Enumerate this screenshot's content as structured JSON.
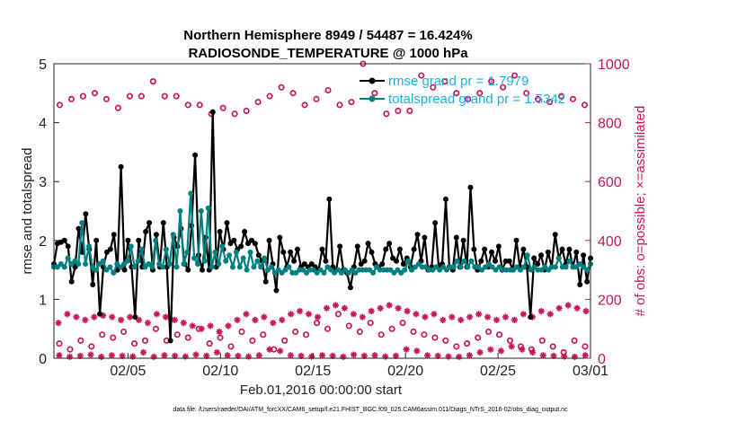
{
  "chart_data": {
    "type": "line",
    "title": "Northern Hemisphere 8949 / 54487 = 16.424%",
    "subtitle": "RADIOSONDE_TEMPERATURE @ 1000 hPa",
    "xlabel": "Feb.01,2016 00:00:00 start",
    "ylabel": "rmse and totalspread",
    "y2label": "# of obs: o=possible; ×=assimilated",
    "footnote": "data file: /Users/raeder/DAI/ATM_forcXX/CAM6_setup/f.e21.FHIST_BGC.f09_025.CAM6assim.011/Diags_NTrS_2016-02/obs_diag_output.nc",
    "x_tick_labels": [
      "02/05",
      "02/10",
      "02/15",
      "02/20",
      "02/25",
      "03/01"
    ],
    "x_tick_days": [
      5,
      10,
      15,
      20,
      25,
      30
    ],
    "xlim": [
      1,
      30
    ],
    "ylim": [
      0,
      5
    ],
    "y2lim": [
      0,
      1000
    ],
    "y_ticks": [
      "0",
      "1",
      "2",
      "3",
      "4",
      "5"
    ],
    "y2_ticks": [
      "0",
      "200",
      "400",
      "600",
      "800",
      "1000"
    ],
    "colors": {
      "rmse": "#000000",
      "spread": "#008080",
      "obs": "#c8155a",
      "legend_text": "#18b0e0"
    },
    "series": [
      {
        "name": "rmse grand pr = 1.7979",
        "values": [
          1.6,
          1.95,
          1.97,
          2.0,
          1.9,
          1.3,
          1.55,
          2.2,
          1.8,
          2.45,
          1.85,
          1.25,
          2.0,
          0.75,
          1.55,
          1.8,
          1.85,
          2.1,
          1.5,
          3.25,
          1.5,
          2.0,
          1.55,
          0.7,
          2.0,
          1.55,
          2.15,
          2.3,
          1.5,
          2.1,
          1.55,
          2.3,
          1.55,
          0.3,
          2.05,
          1.9,
          2.2,
          1.6,
          1.5,
          2.25,
          3.45,
          1.75,
          1.5,
          2.05,
          1.5,
          4.18,
          1.55,
          2.15,
          1.85,
          2.3,
          1.95,
          2.0,
          1.85,
          1.9,
          2.15,
          1.95,
          2.0,
          1.95,
          1.75,
          1.65,
          1.3,
          2.0,
          1.6,
          1.15,
          2.05,
          1.8,
          1.55,
          1.8,
          1.65,
          1.85,
          1.55,
          1.6,
          1.55,
          1.6,
          1.55,
          1.5,
          1.85,
          1.65,
          2.7,
          1.55,
          1.5,
          1.9,
          1.5,
          1.45,
          1.2,
          1.55,
          1.9,
          1.6,
          1.65,
          1.95,
          1.8,
          1.6,
          1.55,
          1.6,
          1.85,
          1.95,
          1.7,
          1.65,
          1.85,
          1.6,
          1.7,
          1.55,
          1.85,
          2.1,
          1.65,
          2.05,
          1.5,
          1.55,
          2.3,
          1.55,
          1.6,
          2.7,
          1.55,
          1.5,
          2.05,
          1.55,
          2.0,
          1.55,
          2.9,
          1.85,
          1.5,
          1.65,
          1.85,
          1.55,
          1.8,
          1.65,
          1.9,
          1.5,
          1.65,
          1.65,
          1.5,
          2.0,
          1.55,
          1.85,
          1.55,
          0.7,
          1.7,
          1.6,
          1.75,
          1.5,
          1.8,
          1.55,
          2.1,
          1.7,
          1.85,
          1.6,
          1.85,
          1.55,
          1.8,
          1.25,
          1.75,
          1.3,
          1.7
        ]
      },
      {
        "name": "totalspread grand pr = 1.5342",
        "values": [
          1.55,
          1.55,
          1.6,
          1.55,
          1.7,
          1.6,
          1.65,
          1.6,
          2.3,
          1.6,
          1.9,
          1.55,
          1.5,
          1.6,
          1.65,
          1.5,
          1.55,
          1.45,
          1.6,
          1.55,
          1.6,
          1.65,
          1.9,
          1.55,
          1.65,
          1.85,
          1.55,
          1.6,
          1.55,
          2.0,
          1.6,
          1.55,
          1.85,
          1.6,
          2.1,
          1.55,
          2.5,
          1.6,
          1.8,
          2.8,
          1.7,
          1.6,
          2.5,
          1.65,
          2.55,
          1.55,
          1.8,
          1.6,
          1.9,
          1.65,
          1.75,
          1.55,
          1.8,
          1.55,
          1.7,
          1.5,
          1.8,
          1.55,
          1.65,
          1.55,
          1.7,
          1.5,
          1.55,
          1.45,
          1.5,
          1.45,
          1.5,
          1.55,
          1.45,
          1.45,
          1.5,
          1.5,
          1.45,
          1.5,
          1.5,
          1.45,
          1.5,
          1.45,
          1.55,
          1.5,
          1.45,
          1.5,
          1.45,
          1.5,
          1.45,
          1.5,
          1.45,
          1.5,
          1.5,
          1.5,
          1.5,
          1.45,
          1.55,
          1.5,
          1.5,
          1.5,
          1.5,
          1.45,
          1.5,
          1.45,
          1.5,
          1.65,
          1.5,
          1.55,
          1.6,
          1.55,
          1.55,
          1.5,
          1.5,
          1.55,
          1.5,
          1.55,
          1.5,
          1.55,
          1.55,
          1.65,
          1.55,
          1.65,
          1.55,
          1.65,
          1.55,
          1.55,
          1.5,
          1.55,
          1.6,
          1.55,
          1.5,
          1.55,
          1.5,
          1.5,
          1.5,
          1.5,
          1.55,
          1.5,
          1.55,
          1.75,
          1.5,
          1.55,
          1.5,
          1.5,
          1.55,
          1.5,
          1.55,
          1.55,
          1.7,
          1.55,
          1.55,
          1.65,
          1.55,
          1.55,
          1.6,
          1.55,
          1.5,
          1.6
        ]
      },
      {
        "name": "possible (upper)",
        "values": [
          860,
          880,
          890,
          900,
          880,
          850,
          890,
          890,
          940,
          890,
          890,
          860,
          860,
          830,
          850,
          830,
          840,
          870,
          890,
          920,
          900,
          860,
          880,
          910,
          860,
          870,
          1000,
          900,
          830,
          840,
          840,
          960,
          920,
          940,
          900,
          880,
          900,
          940,
          920,
          960,
          900,
          880,
          870,
          890,
          880,
          860
        ]
      },
      {
        "name": "possible (lower)",
        "values": [
          50,
          30,
          60,
          40,
          80,
          70,
          90,
          50,
          60,
          100,
          60,
          80,
          70,
          100,
          50,
          70,
          40,
          90,
          60,
          80,
          30,
          60,
          90,
          80,
          120,
          100,
          150,
          110,
          90,
          120,
          80,
          100,
          120,
          90,
          80,
          70,
          60,
          40,
          50,
          70,
          90,
          80,
          60,
          40,
          30,
          60,
          40,
          20,
          60,
          40
        ]
      },
      {
        "name": "assimilated (upper)",
        "values": [
          120,
          150,
          140,
          130,
          140,
          145,
          140,
          130,
          140,
          130,
          120,
          150,
          140,
          130,
          120,
          110,
          100,
          110,
          90,
          110,
          130,
          150,
          130,
          140,
          120,
          130,
          150,
          160,
          150,
          140,
          170,
          180,
          170,
          150,
          140,
          160,
          170,
          180,
          170,
          160,
          150,
          140,
          150,
          130,
          140,
          130,
          140,
          150,
          140,
          130,
          140,
          130,
          150,
          140,
          160,
          150,
          170,
          180,
          170,
          160
        ]
      },
      {
        "name": "assimilated (lower)",
        "values": [
          10,
          5,
          8,
          12,
          5,
          10,
          8,
          6,
          20,
          5,
          10,
          8,
          6,
          12,
          8,
          20,
          10,
          8,
          6,
          10,
          30,
          25,
          10,
          8,
          6,
          10,
          8,
          5,
          12,
          8,
          10,
          6,
          8,
          30,
          25,
          10,
          8,
          6,
          5,
          10,
          20,
          30,
          25,
          40,
          30,
          20,
          10,
          8,
          6,
          5,
          10
        ]
      }
    ]
  }
}
